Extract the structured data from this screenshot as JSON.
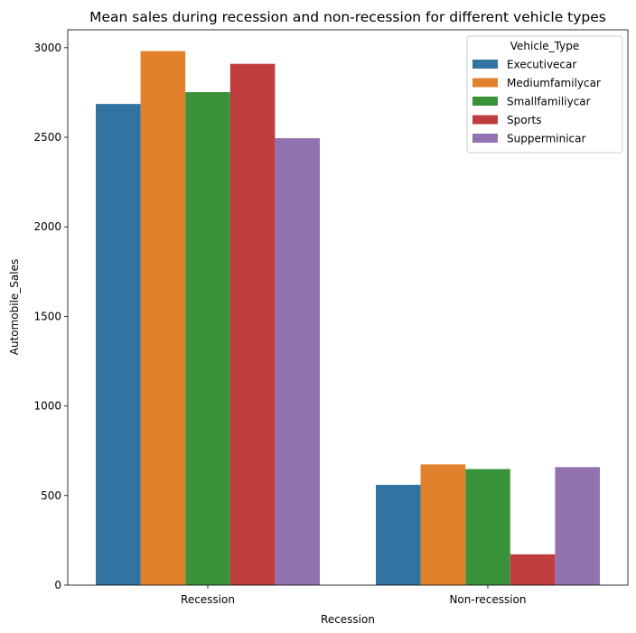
{
  "chart_data": {
    "type": "bar",
    "title": "Mean sales during recession and non-recession for different vehicle types",
    "xlabel": "Recession",
    "ylabel": "Automobile_Sales",
    "categories": [
      "Recession",
      "Non-recession"
    ],
    "ylim": [
      0,
      3100
    ],
    "yticks": [
      0,
      500,
      1000,
      1500,
      2000,
      2500,
      3000
    ],
    "legend_title": "Vehicle_Type",
    "legend_position": "top-right",
    "grid": false,
    "series": [
      {
        "name": "Executivecar",
        "color": "#3274a1",
        "values": [
          2686,
          560
        ]
      },
      {
        "name": "Mediumfamilycar",
        "color": "#e1812c",
        "values": [
          2981,
          674
        ]
      },
      {
        "name": "Smallfamiliycar",
        "color": "#3a923a",
        "values": [
          2752,
          648
        ]
      },
      {
        "name": "Sports",
        "color": "#c03d3e",
        "values": [
          2910,
          172
        ]
      },
      {
        "name": "Supperminicar",
        "color": "#9372b2",
        "values": [
          2495,
          659
        ]
      }
    ]
  }
}
